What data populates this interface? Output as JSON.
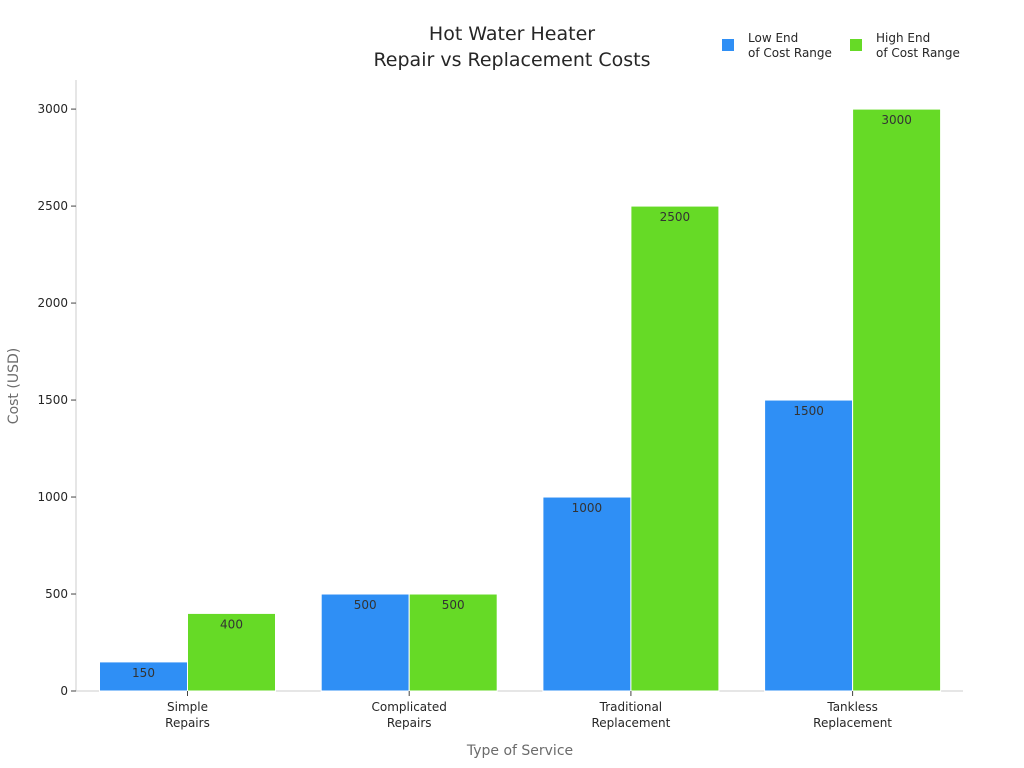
{
  "chart_data": {
    "type": "bar",
    "title_lines": [
      "Hot Water Heater",
      "Repair vs Replacement Costs"
    ],
    "xlabel": "Type of Service",
    "ylabel": "Cost (USD)",
    "categories": [
      [
        "Simple",
        "Repairs"
      ],
      [
        "Complicated",
        "Repairs"
      ],
      [
        "Traditional",
        "Replacement"
      ],
      [
        "Tankless",
        "Replacement"
      ]
    ],
    "series": [
      {
        "name_lines": [
          "Low End",
          "of Cost Range"
        ],
        "color": "#2f8ff5",
        "values": [
          150,
          500,
          1000,
          1500
        ]
      },
      {
        "name_lines": [
          "High End",
          "of Cost Range"
        ],
        "color": "#66da26",
        "values": [
          400,
          500,
          2500,
          3000
        ]
      }
    ],
    "ylim": [
      0,
      3150
    ],
    "yticks": [
      0,
      500,
      1000,
      1500,
      2000,
      2500,
      3000
    ],
    "grid": false,
    "legend_position": "top-right"
  }
}
